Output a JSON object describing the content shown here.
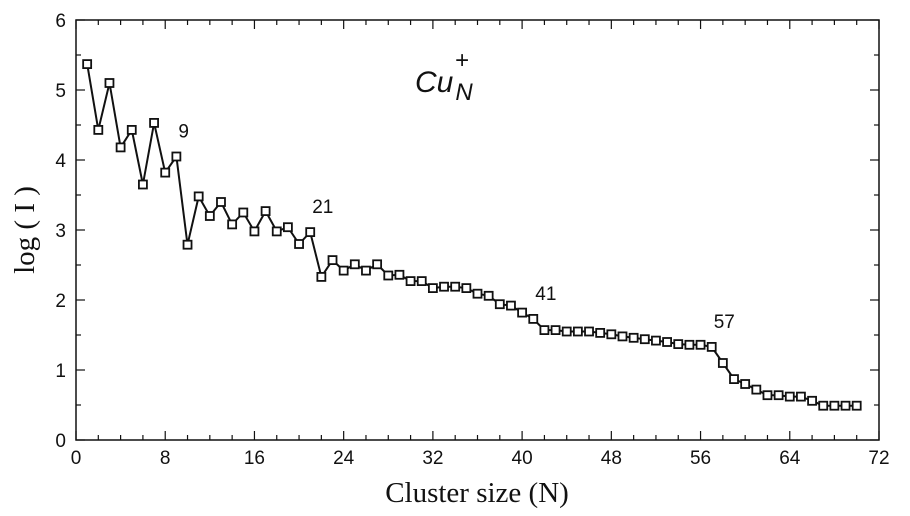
{
  "chart_data": {
    "type": "line",
    "title": "",
    "species_label": {
      "base": "Cu",
      "subscript": "N",
      "superscript": "+"
    },
    "xlabel": "Cluster size (N)",
    "ylabel": "log ( I )",
    "xlim": [
      0,
      72
    ],
    "ylim": [
      0,
      6
    ],
    "x_ticks": [
      0,
      8,
      16,
      24,
      32,
      40,
      48,
      56,
      64,
      72
    ],
    "y_ticks": [
      0,
      1,
      2,
      3,
      4,
      5,
      6
    ],
    "grid": false,
    "legend": "none",
    "marker": "open-square",
    "series": [
      {
        "x": [
          1,
          2,
          3,
          4,
          5,
          6,
          7,
          8,
          9,
          10,
          11,
          12,
          13,
          14,
          15,
          16,
          17,
          18,
          19,
          20,
          21,
          22,
          23,
          24,
          25,
          26,
          27,
          28,
          29,
          30,
          31,
          32,
          33,
          34,
          35,
          36,
          37,
          38,
          39,
          40,
          41,
          42,
          43,
          44,
          45,
          46,
          47,
          48,
          49,
          50,
          51,
          52,
          53,
          54,
          55,
          56,
          57,
          58,
          59,
          60,
          61,
          62,
          63,
          64,
          65,
          66,
          67,
          68,
          69,
          70
        ],
        "values": [
          5.37,
          4.43,
          5.1,
          4.18,
          4.43,
          3.65,
          4.53,
          3.82,
          4.05,
          2.79,
          3.48,
          3.2,
          3.4,
          3.08,
          3.25,
          2.98,
          3.27,
          2.98,
          3.04,
          2.8,
          2.97,
          2.33,
          2.57,
          2.42,
          2.51,
          2.42,
          2.51,
          2.35,
          2.36,
          2.27,
          2.27,
          2.17,
          2.19,
          2.19,
          2.17,
          2.09,
          2.06,
          1.94,
          1.92,
          1.82,
          1.73,
          1.57,
          1.57,
          1.55,
          1.55,
          1.55,
          1.53,
          1.51,
          1.48,
          1.46,
          1.44,
          1.42,
          1.4,
          1.37,
          1.36,
          1.36,
          1.33,
          1.1,
          0.87,
          0.8,
          0.72,
          0.64,
          0.64,
          0.62,
          0.62,
          0.56,
          0.49,
          0.49,
          0.49,
          0.49
        ]
      }
    ],
    "annotations": [
      {
        "text": "9",
        "x": 9,
        "y": 4.05
      },
      {
        "text": "21",
        "x": 21,
        "y": 2.97
      },
      {
        "text": "41",
        "x": 41,
        "y": 1.73
      },
      {
        "text": "57",
        "x": 57,
        "y": 1.33
      }
    ]
  }
}
